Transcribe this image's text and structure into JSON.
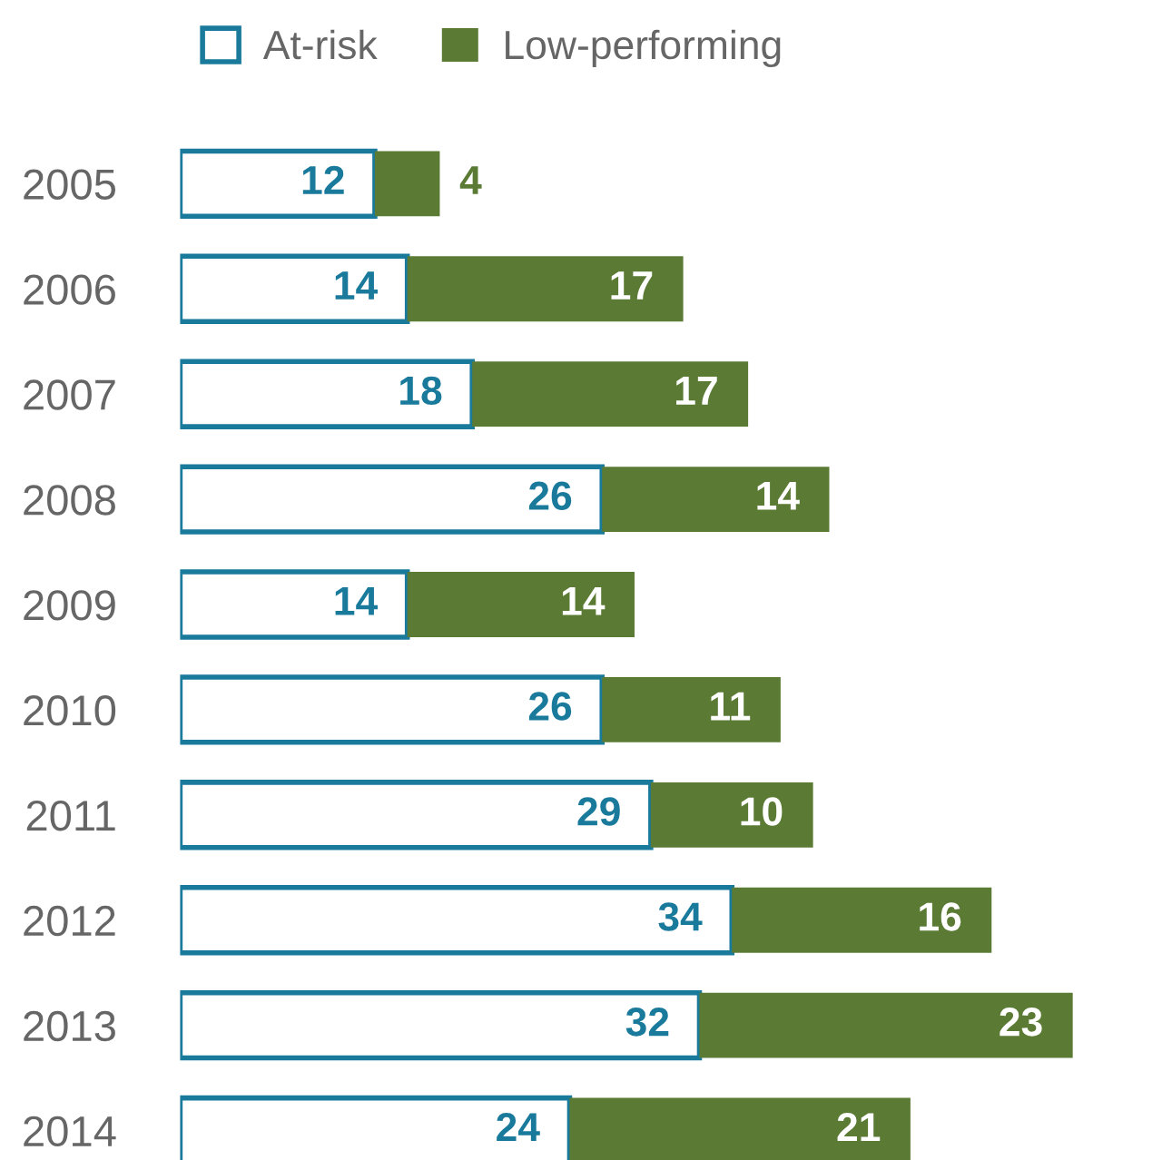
{
  "chart_data": {
    "type": "bar",
    "orientation": "horizontal",
    "stacked": true,
    "data_labels": true,
    "legend": "top left",
    "grid": false,
    "tick_labels": "y",
    "categories": [
      "2005",
      "2006",
      "2007",
      "2008",
      "2009",
      "2010",
      "2011",
      "2012",
      "2013",
      "2014"
    ],
    "series": [
      {
        "name": "At-risk",
        "color": "#1a7a9c",
        "values": [
          12,
          14,
          18,
          26,
          14,
          26,
          29,
          34,
          32,
          24
        ]
      },
      {
        "name": "Low-performing",
        "color": "#5b7b35",
        "values": [
          4,
          17,
          17,
          14,
          14,
          11,
          10,
          16,
          23,
          21
        ]
      }
    ]
  }
}
